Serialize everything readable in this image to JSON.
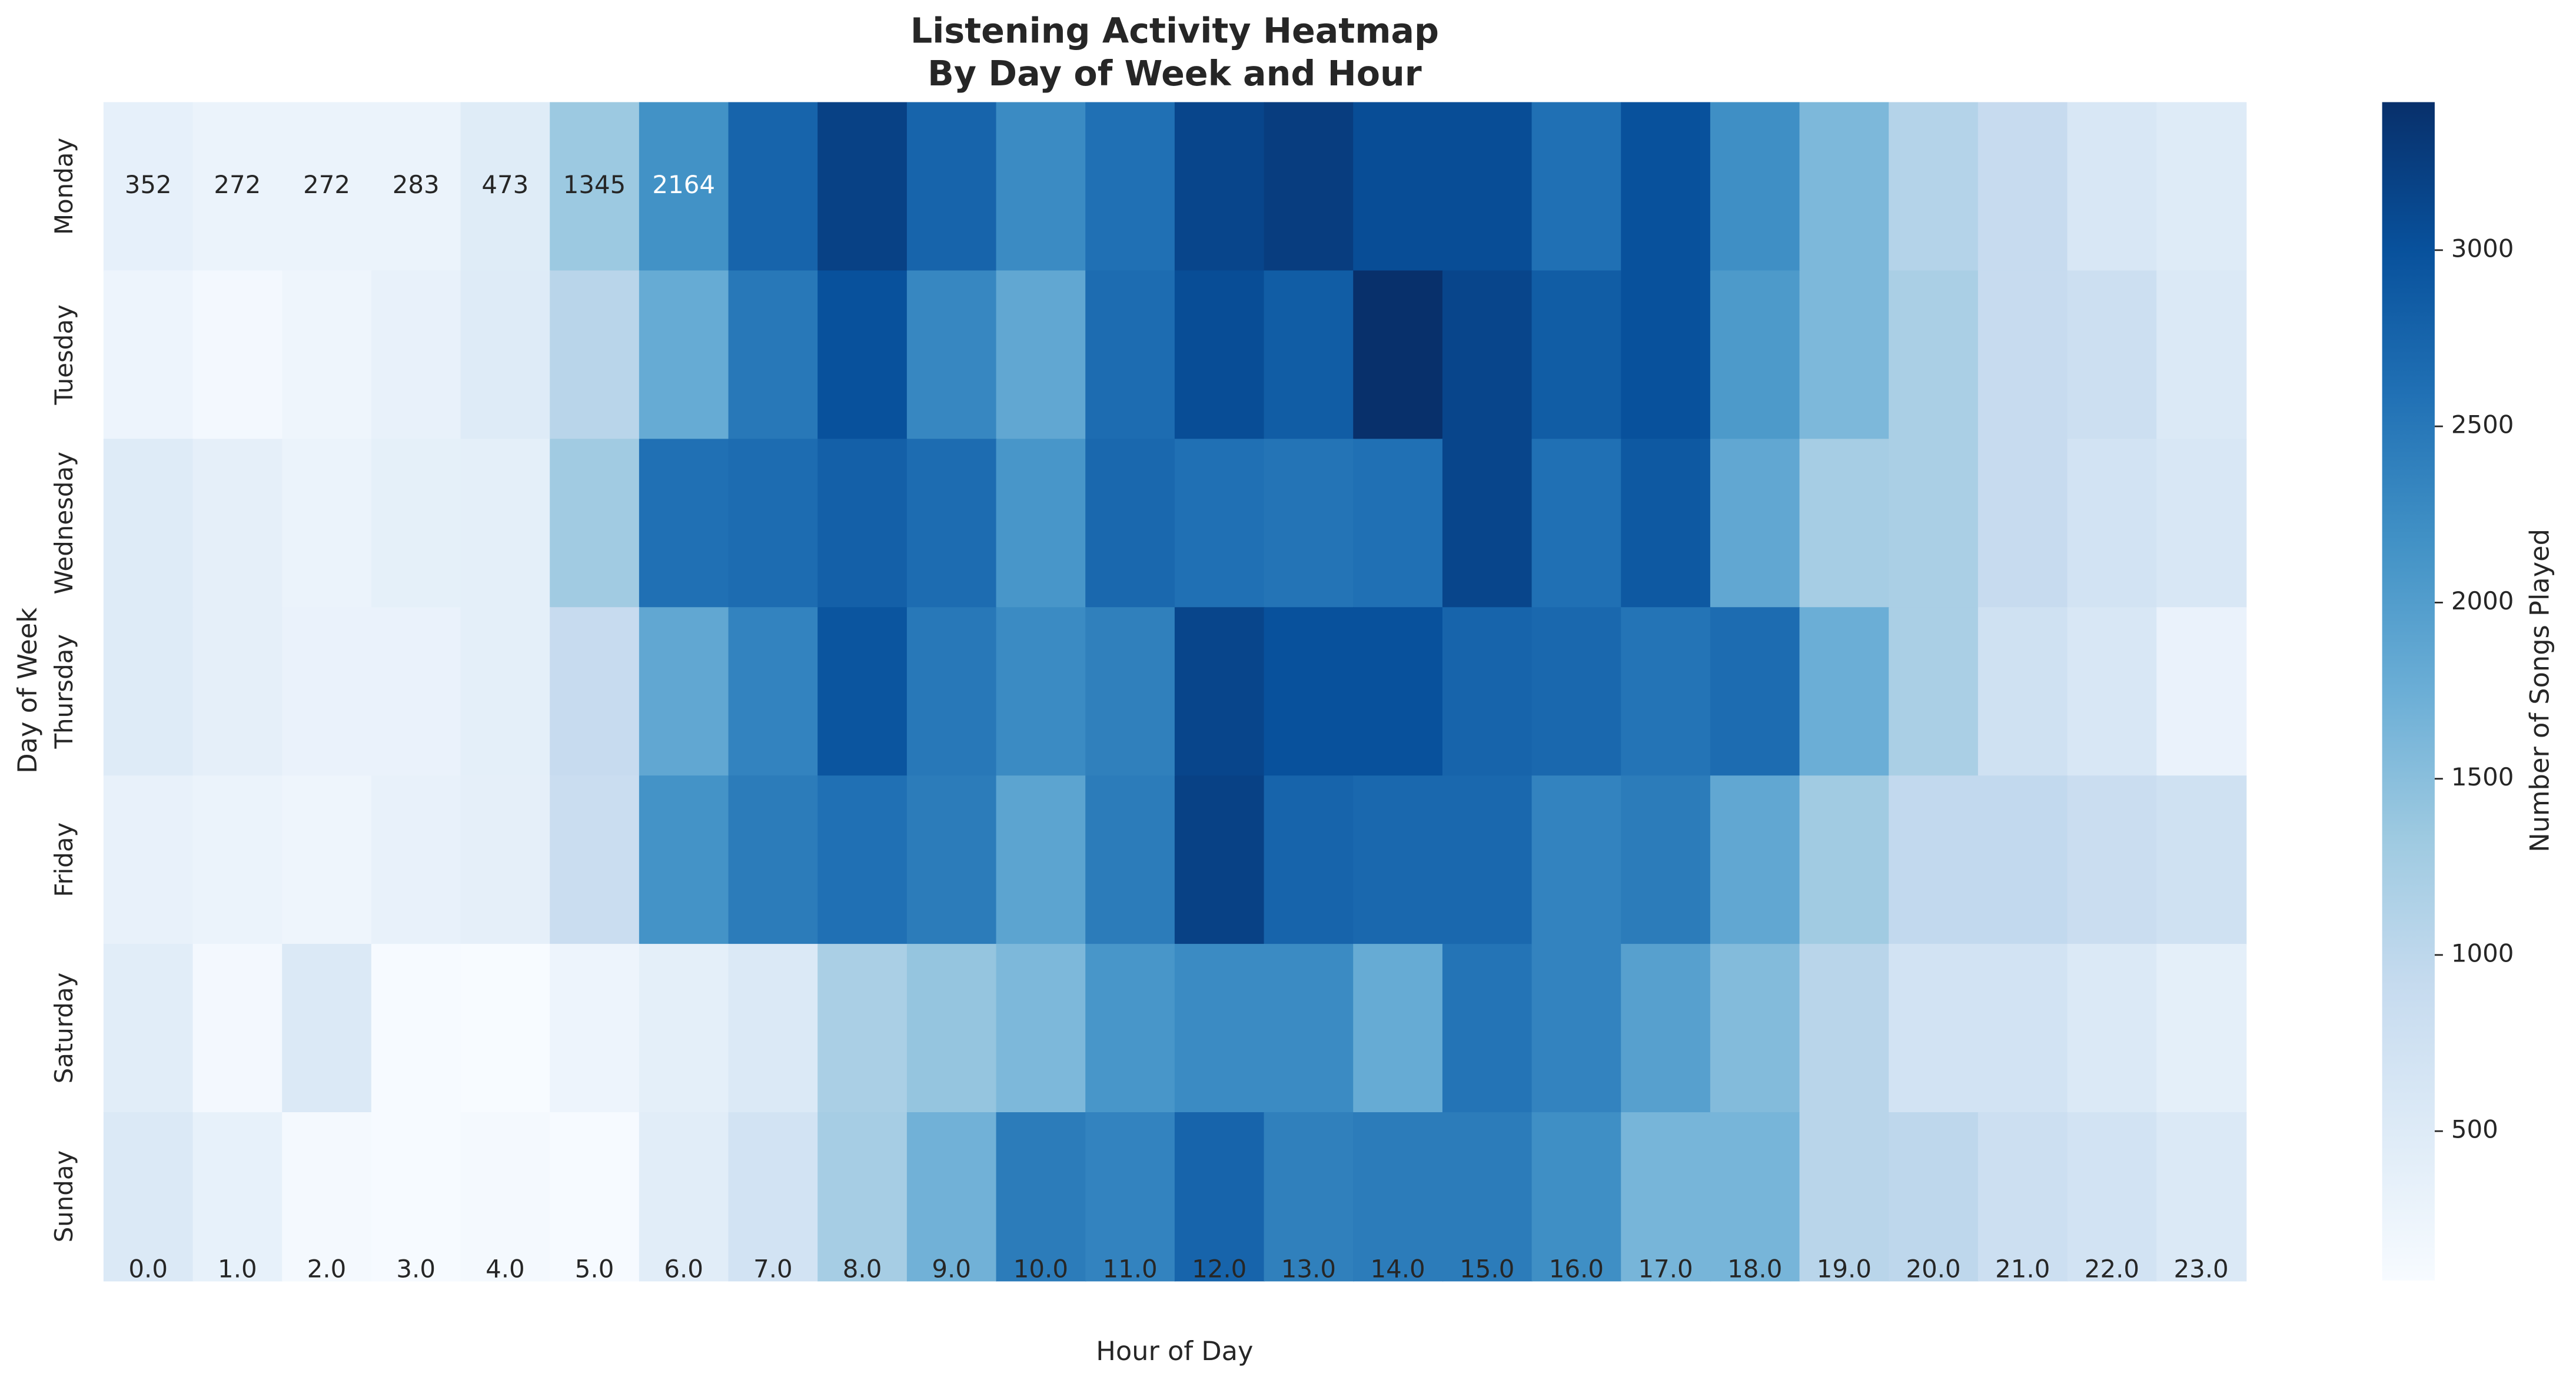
{
  "chart_data": {
    "type": "heatmap",
    "title": "Listening Activity Heatmap",
    "subtitle": "By Day of Week and Hour",
    "x_label": "Hour of Day",
    "y_label": "Day of Week",
    "colorbar_label": "Number of Songs Played",
    "categories": [
      "0.0",
      "1.0",
      "2.0",
      "3.0",
      "4.0",
      "5.0",
      "6.0",
      "7.0",
      "8.0",
      "9.0",
      "10.0",
      "11.0",
      "12.0",
      "13.0",
      "14.0",
      "15.0",
      "16.0",
      "17.0",
      "18.0",
      "19.0",
      "20.0",
      "21.0",
      "22.0",
      "23.0"
    ],
    "rows": [
      "Monday",
      "Tuesday",
      "Wednesday",
      "Thursday",
      "Friday",
      "Saturday",
      "Sunday"
    ],
    "values": [
      [
        352,
        272,
        272,
        283,
        473,
        1345,
        2164,
        2750,
        3200,
        2750,
        2250,
        2600,
        3150,
        3250,
        3050,
        3050,
        2600,
        3000,
        2200,
        1600,
        1100,
        900,
        600,
        500
      ],
      [
        250,
        150,
        230,
        330,
        500,
        1050,
        1800,
        2500,
        3000,
        2300,
        1850,
        2650,
        3050,
        2850,
        3420,
        3150,
        2850,
        3000,
        2050,
        1600,
        1200,
        900,
        800,
        550
      ],
      [
        500,
        380,
        280,
        370,
        400,
        1300,
        2600,
        2650,
        2800,
        2650,
        2100,
        2700,
        2600,
        2550,
        2600,
        3150,
        2600,
        2900,
        1850,
        1250,
        1200,
        900,
        700,
        600
      ],
      [
        500,
        380,
        300,
        300,
        400,
        900,
        1850,
        2350,
        2950,
        2500,
        2250,
        2400,
        3150,
        3000,
        3000,
        2750,
        2700,
        2550,
        2650,
        1750,
        1200,
        750,
        600,
        300
      ],
      [
        330,
        280,
        230,
        330,
        380,
        850,
        2150,
        2450,
        2600,
        2450,
        1900,
        2450,
        3200,
        2750,
        2700,
        2700,
        2350,
        2450,
        1850,
        1300,
        950,
        950,
        850,
        750
      ],
      [
        450,
        150,
        550,
        90,
        80,
        250,
        400,
        550,
        1200,
        1400,
        1600,
        2100,
        2250,
        2250,
        1800,
        2550,
        2350,
        1950,
        1550,
        1050,
        700,
        700,
        550,
        400
      ],
      [
        550,
        350,
        120,
        100,
        120,
        100,
        450,
        700,
        1250,
        1700,
        2450,
        2350,
        2750,
        2400,
        2450,
        2450,
        2200,
        1650,
        1650,
        1050,
        1000,
        800,
        700,
        550
      ]
    ],
    "value_labels": [
      [
        "352",
        "272",
        "272",
        "283",
        "473",
        "1345",
        "2164",
        null,
        null,
        null,
        null,
        null,
        null,
        null,
        null,
        null,
        null,
        null,
        null,
        null,
        null,
        null,
        null,
        null
      ]
    ],
    "clim": [
      76,
      3420
    ],
    "cticks": [
      500,
      1000,
      1500,
      2000,
      2500,
      3000
    ],
    "colormap": [
      "#f7fbff",
      "#deebf7",
      "#c6dbef",
      "#9ecae1",
      "#6baed6",
      "#4292c6",
      "#2171b5",
      "#08519c",
      "#08306b"
    ]
  }
}
